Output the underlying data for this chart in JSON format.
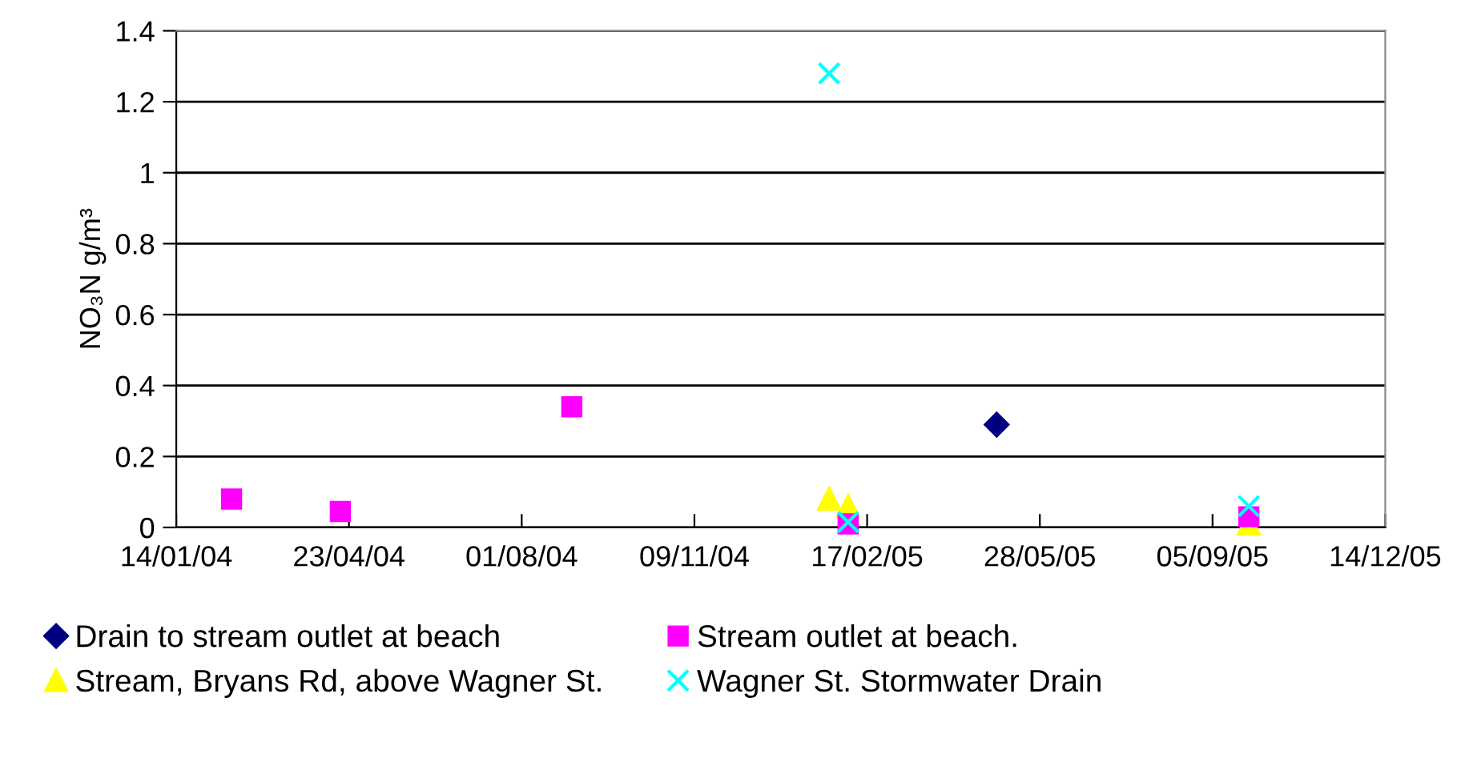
{
  "chart_data": {
    "type": "scatter",
    "ylabel": "NO₃N g/m³",
    "xlim": [
      "2004-01-14",
      "2005-12-14"
    ],
    "xticks": [
      {
        "value": "2004-01-14",
        "label": "14/01/04"
      },
      {
        "value": "2004-04-23",
        "label": "23/04/04"
      },
      {
        "value": "2004-08-01",
        "label": "01/08/04"
      },
      {
        "value": "2004-11-09",
        "label": "09/11/04"
      },
      {
        "value": "2005-02-17",
        "label": "17/02/05"
      },
      {
        "value": "2005-05-28",
        "label": "28/05/05"
      },
      {
        "value": "2005-09-05",
        "label": "05/09/05"
      },
      {
        "value": "2005-12-14",
        "label": "14/12/05"
      }
    ],
    "ylim": [
      0,
      1.4
    ],
    "yticks": [
      0,
      0.2,
      0.4,
      0.6,
      0.8,
      1,
      1.2,
      1.4
    ],
    "grid": "y",
    "legend": "bottom",
    "series": [
      {
        "name": "Drain to stream outlet at beach",
        "color": "#000080",
        "marker": "diamond",
        "x": [
          "2005-05-03"
        ],
        "values": [
          0.29
        ]
      },
      {
        "name": "Stream outlet at beach.",
        "color": "#ff00ff",
        "marker": "square",
        "x": [
          "2004-02-15",
          "2004-04-18",
          "2004-08-30",
          "2005-02-06",
          "2005-09-26"
        ],
        "values": [
          0.08,
          0.045,
          0.34,
          0.01,
          0.03
        ]
      },
      {
        "name": "Stream, Bryans Rd, above Wagner St.",
        "color": "#ffff00",
        "marker": "triangle",
        "x": [
          "2005-01-26",
          "2005-02-06",
          "2005-09-26"
        ],
        "values": [
          0.08,
          0.06,
          0.01
        ]
      },
      {
        "name": "Wagner St. Stormwater Drain",
        "color": "#00ffff",
        "marker": "cross",
        "x": [
          "2005-01-26",
          "2005-02-06",
          "2005-09-26"
        ],
        "values": [
          1.28,
          0.015,
          0.06
        ]
      }
    ]
  }
}
